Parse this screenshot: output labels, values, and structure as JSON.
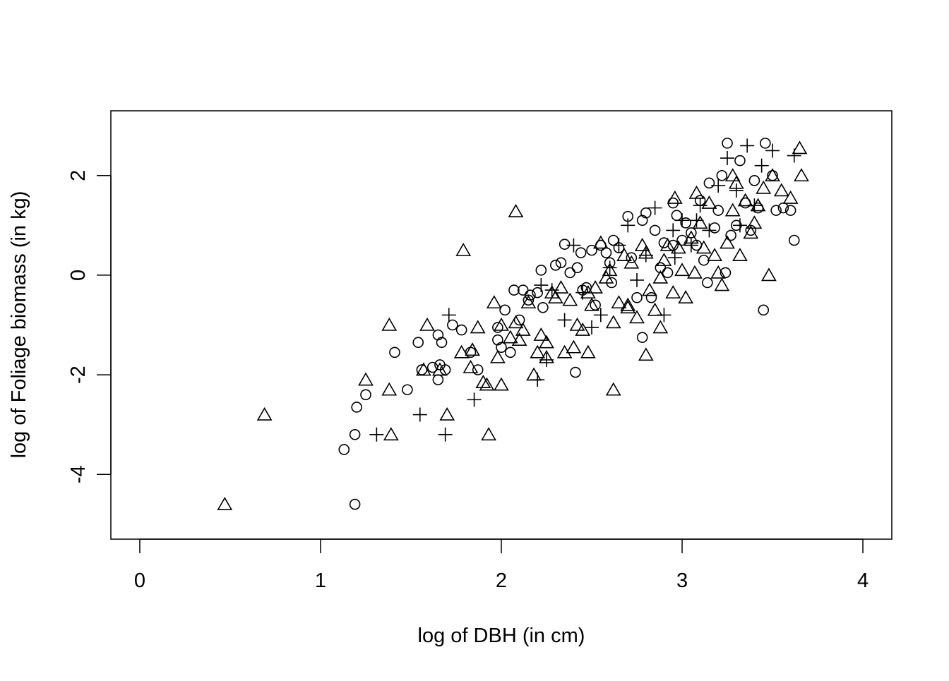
{
  "chart_data": {
    "type": "scatter",
    "title": "",
    "xlabel": "log of DBH (in cm)",
    "ylabel": "log of Foliage biomass (in kg)",
    "xlim": [
      -0.16,
      4.16
    ],
    "ylim": [
      -5.3,
      3.3
    ],
    "x_ticks": [
      0,
      1,
      2,
      3,
      4
    ],
    "x_tick_labels": [
      "0",
      "1",
      "2",
      "3",
      "4"
    ],
    "y_ticks": [
      -4,
      -2,
      0,
      2
    ],
    "y_tick_labels": [
      "-4",
      "-2",
      "0",
      "2"
    ],
    "grid": false,
    "legend": "none",
    "series": [
      {
        "marker": "circle",
        "x": [
          1.13,
          1.19,
          1.19,
          1.2,
          1.25,
          1.41,
          1.48,
          1.54,
          1.56,
          1.62,
          1.65,
          1.65,
          1.66,
          1.67,
          1.69,
          1.73,
          1.78,
          1.83,
          1.87,
          1.98,
          1.98,
          2.0,
          2.02,
          2.05,
          2.07,
          2.1,
          2.12,
          2.15,
          2.16,
          2.2,
          2.22,
          2.23,
          2.3,
          2.35,
          2.38,
          2.41,
          2.42,
          2.44,
          2.47,
          2.5,
          2.55,
          2.58,
          2.6,
          2.62,
          2.65,
          2.7,
          2.72,
          2.75,
          2.78,
          2.8,
          2.83,
          2.85,
          2.88,
          2.9,
          2.92,
          2.95,
          2.97,
          3.0,
          3.02,
          3.05,
          3.08,
          3.1,
          3.12,
          3.14,
          3.15,
          3.18,
          3.2,
          3.22,
          3.24,
          3.25,
          3.27,
          3.3,
          3.32,
          3.35,
          3.38,
          3.4,
          3.42,
          3.45,
          3.46,
          3.5,
          3.52,
          3.56,
          3.6,
          3.62,
          2.61,
          2.52,
          2.45,
          2.33,
          2.78,
          2.95
        ],
        "y": [
          -3.5,
          -4.6,
          -3.2,
          -2.65,
          -2.4,
          -1.55,
          -2.3,
          -1.35,
          -1.9,
          -1.85,
          -2.1,
          -1.2,
          -1.8,
          -1.35,
          -1.9,
          -1.0,
          -1.1,
          -1.55,
          -1.9,
          -1.3,
          -1.05,
          -1.45,
          -0.7,
          -1.55,
          -0.3,
          -0.9,
          -0.3,
          -0.5,
          -0.4,
          -0.35,
          0.1,
          -0.65,
          0.2,
          0.62,
          0.05,
          -1.95,
          0.15,
          0.45,
          -0.25,
          0.5,
          0.6,
          0.45,
          0.25,
          0.7,
          0.55,
          1.18,
          0.35,
          -0.45,
          -1.25,
          1.25,
          -0.45,
          0.9,
          0.15,
          0.65,
          0.05,
          1.45,
          1.2,
          0.7,
          1.05,
          0.85,
          0.6,
          1.5,
          0.3,
          -0.15,
          1.85,
          0.95,
          1.3,
          2.0,
          0.05,
          2.65,
          0.8,
          1.0,
          2.3,
          1.45,
          0.9,
          1.9,
          1.35,
          -0.7,
          2.65,
          2.0,
          1.3,
          1.35,
          1.3,
          0.7,
          -0.15,
          -0.6,
          -0.3,
          0.25,
          1.1,
          0.6
        ]
      },
      {
        "marker": "triangle",
        "x": [
          0.47,
          0.69,
          1.25,
          1.38,
          1.38,
          1.39,
          1.57,
          1.59,
          1.66,
          1.7,
          1.78,
          1.79,
          1.83,
          1.84,
          1.87,
          1.9,
          1.92,
          1.93,
          1.96,
          1.98,
          2.0,
          2.0,
          2.08,
          2.08,
          2.1,
          2.12,
          2.15,
          2.18,
          2.2,
          2.22,
          2.25,
          2.28,
          2.3,
          2.33,
          2.35,
          2.38,
          2.4,
          2.42,
          2.45,
          2.48,
          2.5,
          2.52,
          2.55,
          2.58,
          2.6,
          2.62,
          2.62,
          2.65,
          2.68,
          2.7,
          2.72,
          2.75,
          2.78,
          2.8,
          2.8,
          2.82,
          2.85,
          2.88,
          2.9,
          2.92,
          2.95,
          2.96,
          2.98,
          3.0,
          3.02,
          3.05,
          3.07,
          3.1,
          3.12,
          3.15,
          3.18,
          3.2,
          3.22,
          3.25,
          3.28,
          3.3,
          3.32,
          3.35,
          3.38,
          3.4,
          3.42,
          3.45,
          3.48,
          3.5,
          3.55,
          3.6,
          3.65,
          3.66,
          2.05,
          2.25,
          2.48,
          2.7,
          2.88,
          3.08,
          3.28
        ],
        "y": [
          -4.6,
          -2.8,
          -2.1,
          -1.0,
          -2.3,
          -3.2,
          -1.9,
          -1.0,
          -1.9,
          -2.8,
          -1.55,
          0.5,
          -1.85,
          -1.5,
          -1.05,
          -2.15,
          -2.2,
          -3.2,
          -0.55,
          -1.65,
          -1.0,
          -2.2,
          -0.95,
          1.28,
          -1.3,
          -1.1,
          -0.55,
          -2.0,
          -1.55,
          -1.2,
          -1.65,
          -0.35,
          -0.45,
          -0.25,
          -1.55,
          -0.5,
          -1.45,
          -1.0,
          -1.1,
          -0.35,
          -0.6,
          -0.25,
          0.65,
          -0.05,
          0.1,
          -0.95,
          -2.3,
          -0.55,
          0.4,
          -0.6,
          0.25,
          -0.85,
          0.6,
          -1.6,
          0.45,
          -0.3,
          -0.7,
          -1.05,
          0.3,
          0.6,
          -0.35,
          1.55,
          0.55,
          0.1,
          -0.45,
          0.75,
          0.05,
          1.05,
          0.55,
          1.45,
          0.4,
          0.05,
          -0.2,
          0.65,
          1.3,
          1.85,
          0.4,
          1.5,
          0.85,
          1.05,
          1.4,
          1.75,
          0.0,
          2.0,
          1.7,
          1.55,
          2.55,
          2.0,
          -1.25,
          -1.35,
          -1.55,
          -0.65,
          -0.05,
          1.65,
          2.0
        ]
      },
      {
        "marker": "plus",
        "x": [
          1.31,
          1.55,
          1.69,
          1.71,
          1.85,
          2.2,
          2.25,
          2.28,
          2.35,
          2.4,
          2.45,
          2.5,
          2.55,
          2.6,
          2.65,
          2.7,
          2.75,
          2.8,
          2.85,
          2.9,
          2.95,
          3.0,
          3.05,
          3.1,
          3.15,
          3.2,
          3.25,
          3.3,
          3.32,
          3.36,
          3.4,
          3.44,
          3.5,
          3.62,
          2.22,
          2.96,
          3.08
        ],
        "y": [
          -3.2,
          -2.8,
          -3.2,
          -0.8,
          -2.5,
          -2.1,
          -1.7,
          -0.3,
          -0.9,
          0.6,
          -0.35,
          -1.05,
          -0.8,
          0.15,
          0.6,
          1.0,
          -0.1,
          0.4,
          1.35,
          -0.8,
          0.9,
          1.1,
          0.6,
          1.4,
          0.9,
          1.8,
          2.35,
          1.7,
          1.0,
          2.6,
          1.4,
          2.2,
          2.5,
          2.4,
          -0.2,
          0.35,
          1.1
        ]
      }
    ]
  }
}
